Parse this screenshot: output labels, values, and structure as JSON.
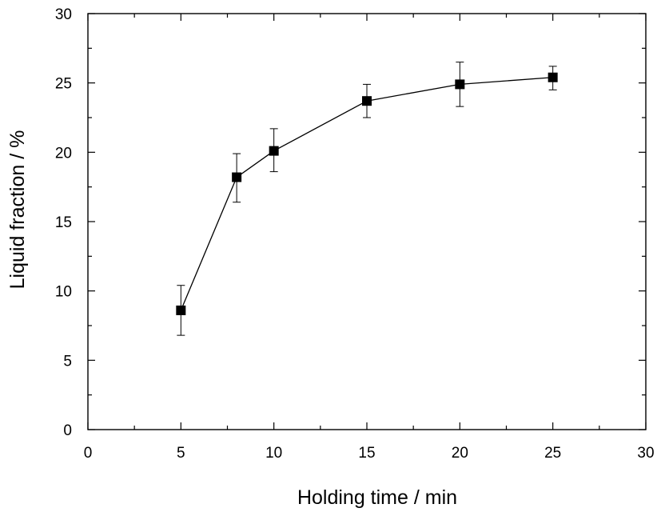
{
  "chart_data": {
    "type": "scatter",
    "title": "",
    "xlabel": "Holding time / min",
    "ylabel": "Liquid fraction / %",
    "xlim": [
      0,
      30
    ],
    "ylim": [
      0,
      30
    ],
    "xticks": [
      0,
      5,
      10,
      15,
      20,
      25,
      30
    ],
    "yticks": [
      0,
      5,
      10,
      15,
      20,
      25,
      30
    ],
    "xtick_labels": [
      "0",
      "5",
      "10",
      "15",
      "20",
      "25",
      "30"
    ],
    "ytick_labels": [
      "0",
      "5",
      "10",
      "15",
      "20",
      "25",
      "30"
    ],
    "x_minor_step": 2.5,
    "y_minor_step": 2.5,
    "grid": false,
    "legend": "none",
    "marker": "square",
    "line": "solid",
    "color": "#000000",
    "series": [
      {
        "x": [
          5,
          8,
          10,
          15,
          20,
          25
        ],
        "y": [
          8.6,
          18.2,
          20.1,
          23.7,
          24.9,
          25.4
        ],
        "yerr_low": [
          6.8,
          16.4,
          18.6,
          22.5,
          23.3,
          24.5
        ],
        "yerr_high": [
          10.4,
          19.9,
          21.7,
          24.9,
          26.5,
          26.2
        ]
      }
    ]
  }
}
